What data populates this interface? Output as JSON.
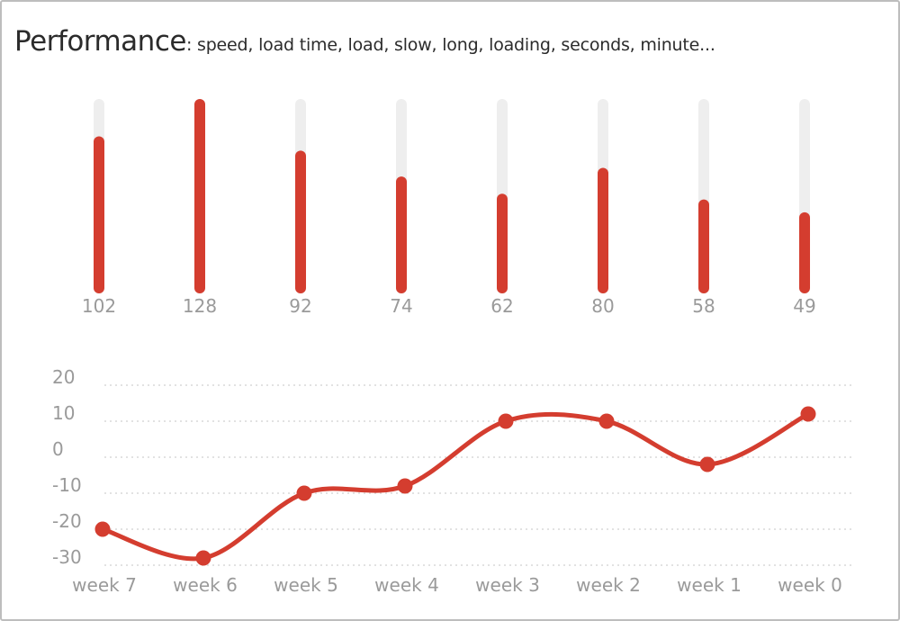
{
  "header": {
    "title": "Performance",
    "subtitle": ": speed, load time, load, slow, long, loading, seconds, minute..."
  },
  "colors": {
    "accent": "#d43d2f",
    "track": "#eeeeee",
    "grid": "#d9d9d9",
    "label": "#9a9a9a"
  },
  "chart_data": [
    {
      "type": "bar",
      "categories": [
        "week 7",
        "week 6",
        "week 5",
        "week 4",
        "week 3",
        "week 2",
        "week 1",
        "week 0"
      ],
      "values": [
        102,
        128,
        92,
        74,
        62,
        80,
        58,
        49
      ],
      "value_labels": [
        "102",
        "128",
        "92",
        "74",
        "62",
        "80",
        "58",
        "49"
      ],
      "ylim": [
        0,
        128
      ]
    },
    {
      "type": "line",
      "x": [
        "week 7",
        "week 6",
        "week 5",
        "week 4",
        "week 3",
        "week 2",
        "week 1",
        "week 0"
      ],
      "values": [
        -20,
        -28,
        -10,
        -8,
        10,
        10,
        -2,
        12
      ],
      "yticks": [
        "20",
        "10",
        "0",
        "-10",
        "-20",
        "-30"
      ],
      "ylim": [
        -30,
        20
      ],
      "grid": true
    }
  ]
}
